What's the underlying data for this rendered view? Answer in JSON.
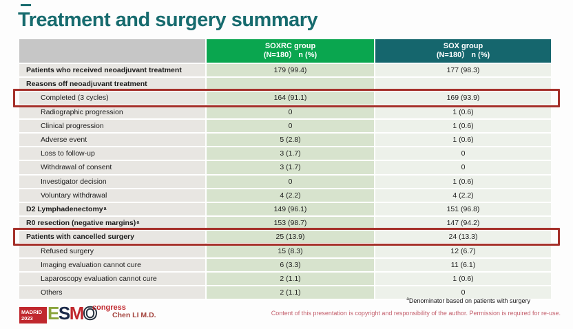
{
  "slide": {
    "title": "Treatment and surgery summary"
  },
  "table": {
    "columns": [
      {
        "line1": "SOXRC group",
        "line2": "(N=180） n (%)"
      },
      {
        "line1": "SOX group",
        "line2": "(N=180） n (%)"
      }
    ],
    "rows": [
      {
        "label": "Patients who received neoadjuvant treatment",
        "bold": true,
        "indent": false,
        "soxrc": "179 (99.4)",
        "sox": "177 (98.3)",
        "highlight": false
      },
      {
        "label": "Reasons off neoadjuvant treatment",
        "bold": true,
        "indent": false,
        "soxrc": "",
        "sox": "",
        "highlight": false
      },
      {
        "label": "Completed (3 cycles)",
        "bold": false,
        "indent": true,
        "soxrc": "164 (91.1)",
        "sox": "169 (93.9)",
        "highlight": true
      },
      {
        "label": "Radiographic progression",
        "bold": false,
        "indent": true,
        "soxrc": "0",
        "sox": "1 (0.6)",
        "highlight": false
      },
      {
        "label": "Clinical progression",
        "bold": false,
        "indent": true,
        "soxrc": "0",
        "sox": "1 (0.6)",
        "highlight": false
      },
      {
        "label": "Adverse event",
        "bold": false,
        "indent": true,
        "soxrc": "5 (2.8)",
        "sox": "1 (0.6)",
        "highlight": false
      },
      {
        "label": "Loss to follow-up",
        "bold": false,
        "indent": true,
        "soxrc": "3 (1.7)",
        "sox": "0",
        "highlight": false
      },
      {
        "label": "Withdrawal of consent",
        "bold": false,
        "indent": true,
        "soxrc": "3 (1.7)",
        "sox": "0",
        "highlight": false
      },
      {
        "label": "Investigator decision",
        "bold": false,
        "indent": true,
        "soxrc": "0",
        "sox": "1 (0.6)",
        "highlight": false
      },
      {
        "label": "Voluntary withdrawal",
        "bold": false,
        "indent": true,
        "soxrc": "4 (2.2)",
        "sox": "4 (2.2)",
        "highlight": false
      },
      {
        "label": "D2 Lymphadenectomy",
        "sup": "a",
        "bold": true,
        "indent": false,
        "soxrc": "149 (96.1)",
        "sox": "151 (96.8)",
        "highlight": false
      },
      {
        "label": "R0 resection (negative margins)",
        "sup": "a",
        "bold": true,
        "indent": false,
        "soxrc": "153 (98.7)",
        "sox": "147 (94.2)",
        "highlight": false
      },
      {
        "label": "Patients with cancelled surgery",
        "bold": true,
        "indent": false,
        "soxrc": "25 (13.9)",
        "sox": "24 (13.3)",
        "highlight": true
      },
      {
        "label": "Refused surgery",
        "bold": false,
        "indent": true,
        "soxrc": "15 (8.3)",
        "sox": "12 (6.7)",
        "highlight": false
      },
      {
        "label": "Imaging evaluation cannot cure",
        "bold": false,
        "indent": true,
        "soxrc": "6 (3.3)",
        "sox": "11 (6.1)",
        "highlight": false
      },
      {
        "label": "Laparoscopy evaluation cannot cure",
        "bold": false,
        "indent": true,
        "soxrc": "2 (1.1)",
        "sox": "1 (0.6)",
        "highlight": false
      },
      {
        "label": "Others",
        "bold": false,
        "indent": true,
        "soxrc": "2 (1.1)",
        "sox": "0",
        "highlight": false
      }
    ]
  },
  "footer": {
    "logo": {
      "city": "MADRID",
      "year": "2023",
      "letters": [
        "E",
        "S",
        "M",
        "O"
      ],
      "congress": "congress"
    },
    "author": "Chen LI M.D.",
    "footnote_sup": "a",
    "footnote_text": "Denominator based on patients with surgery",
    "copyright": "Content of this presentation is copyright and responsibility of the author.  Permission is required for re-use."
  },
  "colors": {
    "title": "#176b6e",
    "label_header": "#c6c6c6",
    "soxrc_header": "#0aa64f",
    "sox_header": "#15666d",
    "label_cell": "#e8e6e2",
    "soxrc_cell": "#d7e3cd",
    "sox_cell": "#edf1ea",
    "highlight_border": "#a5302a",
    "logo_red": "#c0272d",
    "esmo_e": "#8aa43c",
    "esmo_s": "#1b2a4a",
    "esmo_m": "#c0272d",
    "author": "#a3423c",
    "copyright": "#c4606d"
  }
}
